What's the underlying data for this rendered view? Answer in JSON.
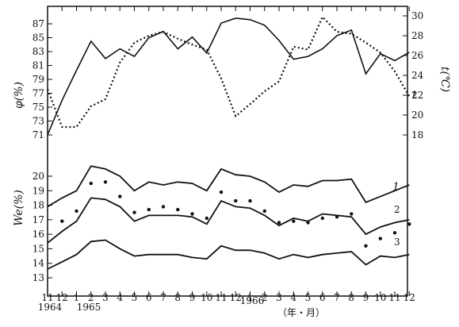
{
  "chart_data": [
    {
      "type": "line",
      "ylabel": "φ(%)",
      "y2label": "t(℃)",
      "yticks": [
        "87",
        "85",
        "83",
        "81",
        "79",
        "77",
        "75",
        "73",
        "71"
      ],
      "y2ticks": [
        "30",
        "28",
        "26",
        "24",
        "22",
        "20",
        "18"
      ],
      "ylim": [
        71,
        87
      ],
      "y2lim": [
        18,
        30
      ],
      "x": [
        0,
        1,
        2,
        3,
        4,
        5,
        6,
        7,
        8,
        9,
        10,
        11,
        12,
        13,
        14,
        15,
        16,
        17,
        18,
        19,
        20,
        21,
        22,
        23,
        24,
        25
      ],
      "series": [
        {
          "name": "",
          "axis": "left",
          "style": "solid",
          "values": [
            71,
            76,
            80.3,
            84.5,
            82,
            83.4,
            82.3,
            85,
            85.9,
            83.4,
            85.1,
            82.8,
            87.1,
            87.8,
            87.6,
            86.8,
            84.6,
            81.9,
            82.3,
            83.4,
            85.3,
            86.1,
            79.8,
            82.7,
            81.7,
            82.9
          ]
        },
        {
          "name": "t",
          "axis": "right",
          "style": "dotted",
          "values": [
            22.6,
            18.8,
            18.8,
            20.9,
            21.6,
            25.3,
            27.3,
            28.0,
            28.4,
            27.7,
            27.1,
            26.6,
            23.7,
            19.9,
            21.1,
            22.4,
            23.4,
            26.9,
            26.6,
            29.9,
            28.4,
            28.2,
            27.3,
            26.3,
            24.4,
            21.9
          ]
        }
      ]
    },
    {
      "type": "line",
      "ylabel": "We(%)",
      "yticks": [
        "20",
        "19",
        "18",
        "17",
        "16",
        "15",
        "14",
        "13"
      ],
      "ylim": [
        12.3,
        21.0
      ],
      "x": [
        0,
        1,
        2,
        3,
        4,
        5,
        6,
        7,
        8,
        9,
        10,
        11,
        12,
        13,
        14,
        15,
        16,
        17,
        18,
        19,
        20,
        21,
        22,
        23,
        24,
        25
      ],
      "series": [
        {
          "name": "1",
          "style": "solid",
          "values": [
            17.9,
            18.5,
            19.0,
            20.7,
            20.5,
            20.0,
            19.0,
            19.6,
            19.4,
            19.6,
            19.5,
            19.0,
            20.5,
            20.1,
            20.0,
            19.6,
            18.9,
            19.4,
            19.3,
            19.7,
            19.7,
            19.8,
            18.2,
            18.6,
            19.0,
            19.4
          ]
        },
        {
          "name": "",
          "style": "dots",
          "values": [
            17.6,
            16.9,
            17.6,
            19.5,
            19.6,
            18.6,
            17.5,
            17.7,
            17.9,
            17.7,
            17.4,
            17.1,
            18.9,
            18.3,
            18.3,
            17.6,
            16.8,
            16.9,
            16.8,
            17.1,
            17.2,
            17.4,
            15.2,
            15.7,
            16.1,
            16.7
          ]
        },
        {
          "name": "2",
          "style": "solid",
          "values": [
            15.4,
            16.2,
            16.9,
            18.5,
            18.4,
            17.9,
            16.9,
            17.3,
            17.3,
            17.3,
            17.2,
            16.7,
            18.3,
            17.9,
            17.8,
            17.3,
            16.6,
            17.1,
            16.9,
            17.4,
            17.3,
            17.2,
            16.0,
            16.5,
            16.8,
            17.0
          ]
        },
        {
          "name": "3",
          "style": "solid",
          "values": [
            13.6,
            14.1,
            14.6,
            15.5,
            15.6,
            15.0,
            14.5,
            14.6,
            14.6,
            14.6,
            14.4,
            14.3,
            15.2,
            14.9,
            14.9,
            14.7,
            14.3,
            14.6,
            14.4,
            14.6,
            14.7,
            14.8,
            13.9,
            14.5,
            14.4,
            14.6
          ]
        }
      ]
    }
  ],
  "x_axis": {
    "month_labels": [
      "11",
      "12",
      "1",
      "2",
      "3",
      "4",
      "5",
      "6",
      "7",
      "8",
      "9",
      "10",
      "11",
      "12",
      "1",
      "2",
      "3",
      "4",
      "5",
      "6",
      "7",
      "8",
      "9",
      "10",
      "11",
      "12"
    ],
    "year_labels": [
      "1964",
      "1965",
      "1966"
    ],
    "xlabel": "（年・月）"
  }
}
